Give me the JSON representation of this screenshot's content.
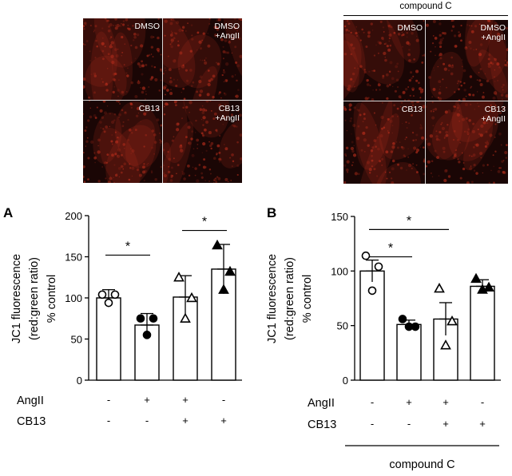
{
  "micrographs": {
    "group_header": "compound C",
    "left_panels": [
      {
        "label_line1": "DMSO",
        "label_line2": ""
      },
      {
        "label_line1": "DMSO",
        "label_line2": "+AngII"
      },
      {
        "label_line1": "CB13",
        "label_line2": ""
      },
      {
        "label_line1": "CB13",
        "label_line2": "+AngII"
      }
    ],
    "right_panels": [
      {
        "label_line1": "DMSO",
        "label_line2": ""
      },
      {
        "label_line1": "DMSO",
        "label_line2": "+AngII"
      },
      {
        "label_line1": "CB13",
        "label_line2": ""
      },
      {
        "label_line1": "CB13",
        "label_line2": "+AngII"
      }
    ],
    "colors": {
      "background": "#1a0605",
      "signal": "#c8321e",
      "divider": "#d8d8d8"
    }
  },
  "chart_data": [
    {
      "panel_letter": "A",
      "type": "bar",
      "ylabel_lines": [
        "JC1 fluorescence",
        "(red:green ratio)",
        "% control"
      ],
      "ylim": [
        0,
        200
      ],
      "yticks": [
        "0",
        "50",
        "100",
        "150",
        "200"
      ],
      "row_labels": [
        "AngII",
        "CB13"
      ],
      "conditions": [
        {
          "angii": "-",
          "cb13": "-",
          "mean": 100,
          "sem": 10,
          "marker": "open-circle",
          "points": [
            104,
            104,
            94
          ]
        },
        {
          "angii": "+",
          "cb13": "-",
          "mean": 67,
          "sem": 14,
          "marker": "filled-circle",
          "points": [
            75,
            75,
            55
          ]
        },
        {
          "angii": "+",
          "cb13": "+",
          "mean": 101,
          "sem": 26,
          "marker": "open-triangle",
          "points": [
            125,
            100,
            75
          ]
        },
        {
          "angii": "-",
          "cb13": "+",
          "mean": 135,
          "sem": 30,
          "marker": "filled-triangle",
          "points": [
            164,
            132,
            110
          ]
        }
      ],
      "significance": [
        {
          "from": 0,
          "to": 1,
          "y": 152,
          "label": "*"
        },
        {
          "from": 2,
          "to": 3,
          "y": 182,
          "label": "*"
        }
      ]
    },
    {
      "panel_letter": "B",
      "type": "bar",
      "ylabel_lines": [
        "JC1 fluorescence",
        "(red:green ratio)",
        "% control"
      ],
      "ylim": [
        0,
        150
      ],
      "yticks": [
        "0",
        "50",
        "100",
        "150"
      ],
      "row_labels": [
        "AngII",
        "CB13"
      ],
      "conditions": [
        {
          "angii": "-",
          "cb13": "-",
          "mean": 100,
          "sem": 10,
          "marker": "open-circle",
          "points": [
            114,
            104,
            82
          ]
        },
        {
          "angii": "+",
          "cb13": "-",
          "mean": 51,
          "sem": 4,
          "marker": "filled-circle",
          "points": [
            56,
            49,
            49
          ]
        },
        {
          "angii": "+",
          "cb13": "+",
          "mean": 56,
          "sem": 15,
          "marker": "open-triangle",
          "points": [
            84,
            54,
            32
          ]
        },
        {
          "angii": "-",
          "cb13": "+",
          "mean": 86,
          "sem": 6,
          "marker": "filled-triangle",
          "points": [
            93,
            85,
            83
          ]
        }
      ],
      "significance": [
        {
          "from": 0,
          "to": 1,
          "y": 113,
          "label": "*"
        },
        {
          "from": 0,
          "to": 2,
          "y": 138,
          "label": "*"
        }
      ],
      "group_label": "compound C"
    }
  ]
}
